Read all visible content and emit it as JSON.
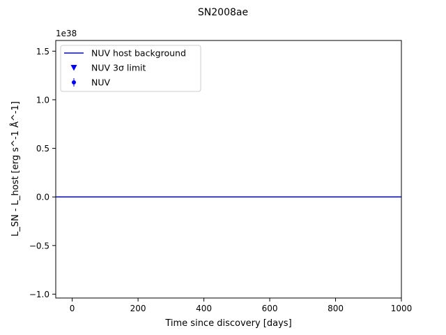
{
  "chart_data": {
    "type": "line",
    "title": "SN2008ae",
    "xlabel": "Time since discovery [days]",
    "ylabel": "L_SN - L_host [erg s^-1 Å^-1]",
    "y_offset_label": "1e38",
    "xlim": [
      -50,
      1000
    ],
    "ylim": [
      -1.04,
      1.61
    ],
    "x_ticks": [
      0,
      200,
      400,
      600,
      800,
      1000
    ],
    "y_ticks": [
      -1.0,
      -0.5,
      0.0,
      0.5,
      1.0,
      1.5
    ],
    "x_tick_labels": [
      "0",
      "200",
      "400",
      "600",
      "800",
      "1000"
    ],
    "y_tick_labels": [
      "−1.0",
      "−0.5",
      "0.0",
      "0.5",
      "1.0",
      "1.5"
    ],
    "grid": false,
    "legend_position": "upper-left",
    "series": [
      {
        "name": "NUV host background",
        "kind": "line",
        "color": "#0000ff",
        "x": [
          -50,
          1000
        ],
        "y": [
          0.0,
          0.0
        ]
      },
      {
        "name": "NUV 3σ limit",
        "kind": "marker-triangle-down",
        "color": "#0000ff",
        "x": [],
        "y": []
      },
      {
        "name": "NUV",
        "kind": "errorbar-point",
        "color": "#0000ff",
        "x": [],
        "y": []
      }
    ]
  }
}
